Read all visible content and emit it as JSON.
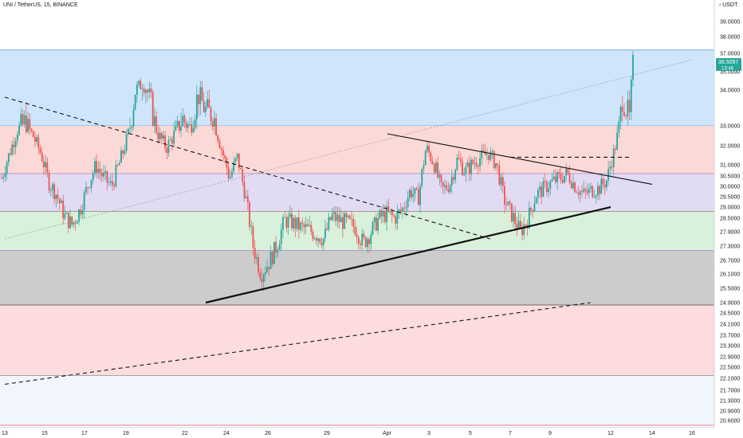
{
  "header": {
    "title": "UNI / TetherUS, 15, BINANCE",
    "currency_label": "USDT"
  },
  "last_price": {
    "value": "36.5097",
    "countdown": "13:48",
    "color": "#26a69a"
  },
  "chart_data": {
    "type": "candlestick",
    "title": "UNI / TetherUS, 15, BINANCE",
    "ylabel": "USDT",
    "ylim": [
      20.4,
      40.0
    ],
    "y_ticks": [
      "39.0000",
      "38.0000",
      "37.0000",
      "35.0000",
      "34.0000",
      "33.0000",
      "32.0000",
      "31.0000",
      "30.5000",
      "30.0000",
      "29.5000",
      "29.0000",
      "28.5000",
      "27.9000",
      "27.3000",
      "26.7000",
      "26.1000",
      "25.5000",
      "24.9000",
      "24.5000",
      "24.1000",
      "23.7000",
      "23.3000",
      "22.9000",
      "22.5000",
      "22.1000",
      "21.7000",
      "21.3000",
      "20.9000",
      "20.6000"
    ],
    "x_ticks": [
      "13",
      "15",
      "17",
      "19",
      "22",
      "24",
      "26",
      "29",
      "Apr",
      "3",
      "5",
      "7",
      "9",
      "12",
      "14",
      "16"
    ],
    "zones": [
      {
        "top": 37.2,
        "bottom": 33.0,
        "color": "#cfe5fb",
        "border": "#7da9e3"
      },
      {
        "top": 33.0,
        "bottom": 30.6,
        "color": "#fbd9d7",
        "border": "#8e44ad"
      },
      {
        "top": 30.6,
        "bottom": 28.8,
        "color": "#e2dbf4",
        "border": "#6d3f3f"
      },
      {
        "top": 28.8,
        "bottom": 27.1,
        "color": "#d9f0db",
        "border": "#8e44ad"
      },
      {
        "top": 27.1,
        "bottom": 24.8,
        "color": "#cccccc",
        "border": "#000000"
      },
      {
        "top": 24.8,
        "bottom": 22.2,
        "color": "#fcdcdc",
        "border": "#555555"
      },
      {
        "top": 22.2,
        "bottom": 20.4,
        "color": "#f1f6fd",
        "border": "#f27d7d"
      }
    ],
    "trendlines": [
      {
        "style": "solid-bold",
        "from": [
          "Mar 23",
          24.9
        ],
        "to": [
          "Apr 12",
          29.0
        ]
      },
      {
        "style": "solid",
        "from": [
          "Apr 1",
          32.6
        ],
        "to": [
          "Apr 14",
          30.1
        ]
      },
      {
        "style": "dashed",
        "from": [
          "Mar 13",
          33.8
        ],
        "to": [
          "Apr 6",
          27.6
        ]
      },
      {
        "style": "dashed",
        "from": [
          "Apr 7",
          31.4
        ],
        "to": [
          "Apr 13",
          31.4
        ]
      },
      {
        "style": "dashed",
        "from": [
          "Mar 13",
          21.9
        ],
        "to": [
          "Apr 11",
          24.9
        ]
      },
      {
        "style": "dotted",
        "from": [
          "Mar 13",
          27.6
        ],
        "to": [
          "Apr 16",
          36.3
        ]
      }
    ],
    "series": [
      {
        "values": [
          [
            0,
            30.4
          ],
          [
            3,
            31.6
          ],
          [
            6,
            32.8
          ],
          [
            9,
            33.1
          ],
          [
            12,
            32.5
          ],
          [
            15,
            31.6
          ],
          [
            18,
            30.2
          ],
          [
            21,
            29.6
          ],
          [
            24,
            28.6
          ],
          [
            27,
            28.2
          ],
          [
            30,
            28.9
          ],
          [
            33,
            30.1
          ],
          [
            36,
            31.0
          ],
          [
            39,
            30.4
          ],
          [
            42,
            30.0
          ],
          [
            45,
            31.1
          ],
          [
            48,
            32.4
          ],
          [
            51,
            34.0
          ],
          [
            54,
            34.4
          ],
          [
            57,
            33.6
          ],
          [
            60,
            32.5
          ],
          [
            63,
            31.9
          ],
          [
            66,
            32.6
          ],
          [
            69,
            33.2
          ],
          [
            72,
            32.9
          ],
          [
            75,
            33.9
          ],
          [
            78,
            33.4
          ],
          [
            81,
            33.3
          ],
          [
            84,
            31.8
          ],
          [
            87,
            30.4
          ],
          [
            90,
            31.4
          ],
          [
            93,
            29.6
          ],
          [
            96,
            27.3
          ],
          [
            99,
            26.1
          ],
          [
            102,
            26.6
          ],
          [
            105,
            27.3
          ],
          [
            108,
            28.4
          ],
          [
            111,
            28.3
          ],
          [
            114,
            28.1
          ],
          [
            117,
            28.0
          ],
          [
            120,
            27.8
          ],
          [
            123,
            27.6
          ],
          [
            126,
            28.6
          ],
          [
            129,
            28.4
          ],
          [
            132,
            28.3
          ],
          [
            135,
            28.1
          ],
          [
            138,
            27.4
          ],
          [
            141,
            27.9
          ],
          [
            144,
            28.5
          ],
          [
            147,
            28.7
          ],
          [
            150,
            28.5
          ],
          [
            153,
            28.9
          ],
          [
            156,
            29.8
          ],
          [
            159,
            29.4
          ],
          [
            162,
            31.9
          ],
          [
            165,
            31.1
          ],
          [
            168,
            29.8
          ],
          [
            171,
            30.1
          ],
          [
            174,
            31.3
          ],
          [
            177,
            30.7
          ],
          [
            180,
            31.1
          ],
          [
            183,
            31.4
          ],
          [
            186,
            31.6
          ],
          [
            189,
            31.0
          ],
          [
            192,
            29.3
          ],
          [
            195,
            28.6
          ],
          [
            198,
            27.9
          ],
          [
            201,
            28.5
          ],
          [
            204,
            29.6
          ],
          [
            207,
            29.9
          ],
          [
            210,
            30.2
          ],
          [
            213,
            30.4
          ],
          [
            216,
            30.6
          ],
          [
            219,
            30.0
          ],
          [
            222,
            29.6
          ],
          [
            225,
            29.8
          ],
          [
            228,
            29.9
          ],
          [
            231,
            30.3
          ],
          [
            234,
            31.8
          ],
          [
            237,
            33.8
          ],
          [
            240,
            33.1
          ],
          [
            241,
            36.5
          ]
        ]
      }
    ]
  }
}
